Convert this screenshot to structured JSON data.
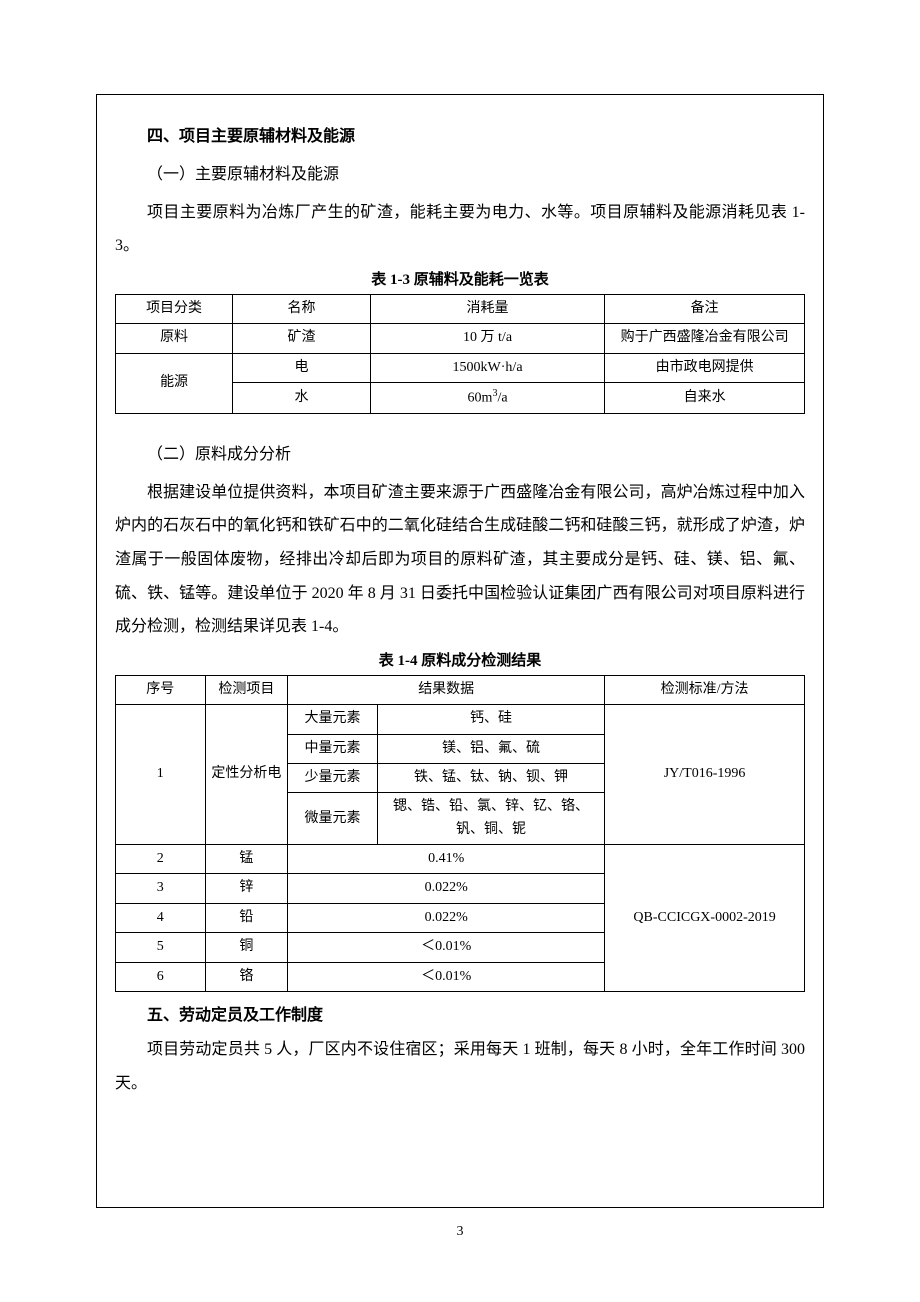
{
  "section4": {
    "heading": "四、项目主要原辅材料及能源",
    "sub1_heading": "（一）主要原辅材料及能源",
    "sub1_para": "项目主要原料为冶炼厂产生的矿渣，能耗主要为电力、水等。项目原辅料及能源消耗见表 1-3。",
    "table1": {
      "caption": "表 1-3  原辅料及能耗一览表",
      "headers": {
        "c1": "项目分类",
        "c2": "名称",
        "c3": "消耗量",
        "c4": "备注"
      },
      "rows": {
        "r1": {
          "cat": "原料",
          "name": "矿渣",
          "amount": "10 万 t/a",
          "note": "购于广西盛隆冶金有限公司"
        },
        "r2": {
          "cat": "能源",
          "name": "电",
          "amount": "1500kW·h/a",
          "note": "由市政电网提供"
        },
        "r3": {
          "name": "水",
          "amount_pre": "60m",
          "amount_sup": "3",
          "amount_post": "/a",
          "note": "自来水"
        }
      }
    },
    "sub2_heading": "（二）原料成分分析",
    "sub2_para": "根据建设单位提供资料，本项目矿渣主要来源于广西盛隆冶金有限公司，高炉冶炼过程中加入炉内的石灰石中的氧化钙和铁矿石中的二氧化硅结合生成硅酸二钙和硅酸三钙，就形成了炉渣，炉渣属于一般固体废物，经排出冷却后即为项目的原料矿渣，其主要成分是钙、硅、镁、铝、氟、硫、铁、锰等。建设单位于 2020 年 8 月 31 日委托中国检验认证集团广西有限公司对项目原料进行成分检测，检测结果详见表 1-4。",
    "table2": {
      "caption": "表 1-4 原料成分检测结果",
      "headers": {
        "c1": "序号",
        "c2": "检测项目",
        "c34": "结果数据",
        "c5": "检测标准/方法"
      },
      "row1": {
        "seq": "1",
        "item": "定性分析电",
        "a_label": "大量元素",
        "a_val": "钙、硅",
        "b_label": "中量元素",
        "b_val": "镁、铝、氟、硫",
        "c_label": "少量元素",
        "c_val": "铁、锰、钛、钠、钡、钾",
        "d_label": "微量元素",
        "d_val": "锶、锆、铅、氯、锌、钇、铬、钒、铜、铌",
        "std": "JY/T016-1996"
      },
      "row2": {
        "seq": "2",
        "item": "锰",
        "val": "0.41%"
      },
      "row3": {
        "seq": "3",
        "item": "锌",
        "val": "0.022%"
      },
      "row4": {
        "seq": "4",
        "item": "铅",
        "val": "0.022%"
      },
      "row5": {
        "seq": "5",
        "item": "铜",
        "val": "＜0.01%"
      },
      "row6": {
        "seq": "6",
        "item": "铬",
        "val": "＜0.01%"
      },
      "std2": "QB-CCICGX-0002-2019"
    }
  },
  "section5": {
    "heading": "五、劳动定员及工作制度",
    "para": "项目劳动定员共 5 人，厂区内不设住宿区；采用每天 1 班制，每天 8 小时，全年工作时间 300 天。"
  },
  "page_number": "3"
}
